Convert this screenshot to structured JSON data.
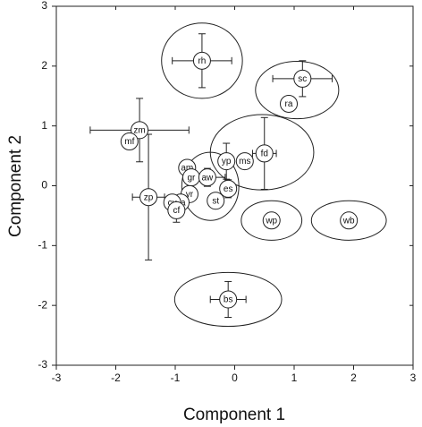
{
  "chart_data": {
    "type": "scatter",
    "x_label": "Component 1",
    "y_label": "Component 2",
    "xlim": [
      -3,
      3
    ],
    "ylim": [
      -3,
      3
    ],
    "xticks": [
      -3,
      -2,
      -1,
      0,
      1,
      2,
      3
    ],
    "yticks": [
      -3,
      -2,
      -1,
      0,
      1,
      2,
      3
    ],
    "labels": [
      "rh",
      "sc",
      "ra",
      "zm",
      "mf",
      "fd",
      "ms",
      "yp",
      "am",
      "gr",
      "aw",
      "es",
      "zp",
      "yr",
      "pa",
      "cv",
      "cf",
      "st",
      "wp",
      "wb",
      "bs"
    ],
    "x": [
      -0.55,
      1.14,
      0.91,
      -1.6,
      -1.77,
      0.5,
      0.17,
      -0.14,
      -0.8,
      -0.73,
      -0.46,
      -0.11,
      -1.45,
      -0.76,
      -0.91,
      -1.05,
      -0.98,
      -0.32,
      0.62,
      1.92,
      -0.11
    ],
    "y": [
      2.09,
      1.79,
      1.37,
      0.93,
      0.74,
      0.54,
      0.41,
      0.41,
      0.3,
      0.14,
      0.14,
      -0.05,
      -0.19,
      -0.14,
      -0.28,
      -0.28,
      -0.41,
      -0.25,
      -0.58,
      -0.58,
      -1.9
    ],
    "xerr": [
      0.5,
      0.5,
      null,
      0.83,
      null,
      0.2,
      null,
      null,
      null,
      null,
      0.3,
      null,
      0.27,
      null,
      null,
      null,
      null,
      null,
      null,
      null,
      0.3
    ],
    "yerr": [
      0.45,
      0.3,
      null,
      0.53,
      null,
      0.6,
      null,
      0.3,
      null,
      null,
      0.15,
      0.15,
      1.05,
      null,
      null,
      null,
      0.2,
      null,
      null,
      null,
      0.3
    ],
    "ellipses": [
      {
        "cx": -0.55,
        "cy": 2.09,
        "rx": 0.68,
        "ry": 0.63
      },
      {
        "cx": 1.05,
        "cy": 1.6,
        "rx": 0.7,
        "ry": 0.48
      },
      {
        "cx": 0.46,
        "cy": 0.56,
        "rx": 0.87,
        "ry": 0.63
      },
      {
        "cx": -0.41,
        "cy": -0.01,
        "rx": 0.48,
        "ry": 0.57
      },
      {
        "cx": 0.62,
        "cy": -0.58,
        "rx": 0.51,
        "ry": 0.33
      },
      {
        "cx": 1.92,
        "cy": -0.58,
        "rx": 0.63,
        "ry": 0.33
      },
      {
        "cx": -0.11,
        "cy": -1.9,
        "rx": 0.9,
        "ry": 0.45
      }
    ]
  }
}
